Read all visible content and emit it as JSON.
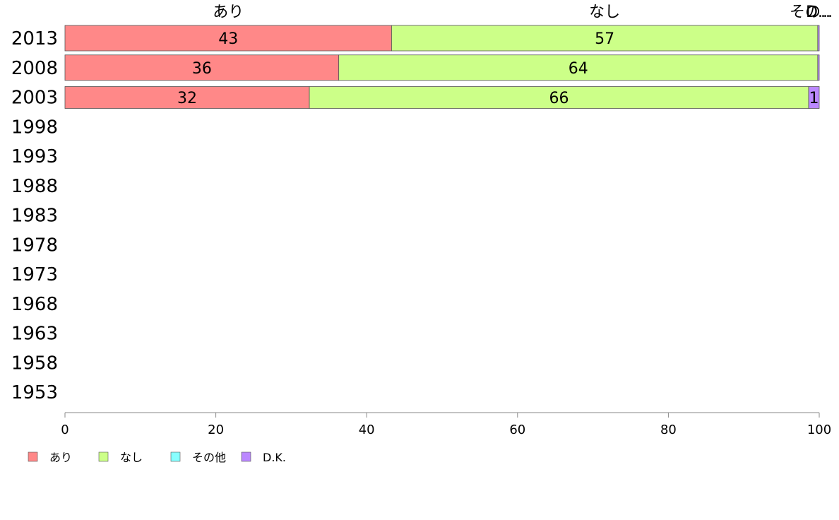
{
  "chart_data": {
    "type": "bar",
    "orientation": "horizontal",
    "stacked": true,
    "categories": [
      "2013",
      "2008",
      "2003",
      "1998",
      "1993",
      "1988",
      "1983",
      "1978",
      "1973",
      "1968",
      "1963",
      "1958",
      "1953"
    ],
    "series": [
      {
        "name": "あり",
        "color": "#ff8888",
        "values": [
          43.3,
          36.3,
          32.4,
          null,
          null,
          null,
          null,
          null,
          null,
          null,
          null,
          null,
          null
        ]
      },
      {
        "name": "なし",
        "color": "#ccff88",
        "values": [
          56.5,
          63.5,
          66.2,
          null,
          null,
          null,
          null,
          null,
          null,
          null,
          null,
          null,
          null
        ]
      },
      {
        "name": "その他",
        "color": "#88ffff",
        "values": [
          0,
          0,
          0,
          null,
          null,
          null,
          null,
          null,
          null,
          null,
          null,
          null,
          null
        ]
      },
      {
        "name": "D.K.",
        "color": "#bb88ff",
        "values": [
          0.2,
          0.2,
          1.4,
          null,
          null,
          null,
          null,
          null,
          null,
          null,
          null,
          null,
          null
        ]
      }
    ],
    "data_labels": [
      [
        "43",
        "57",
        "",
        ""
      ],
      [
        "36",
        "64",
        "",
        ""
      ],
      [
        "32",
        "66",
        "",
        "1"
      ]
    ],
    "top_labels": [
      "あり",
      "なし",
      "その他",
      "D.K."
    ],
    "xlim": [
      0,
      100
    ],
    "xticks": [
      0,
      20,
      40,
      60,
      80,
      100
    ],
    "grid": false,
    "legend_position": "bottom-left"
  }
}
